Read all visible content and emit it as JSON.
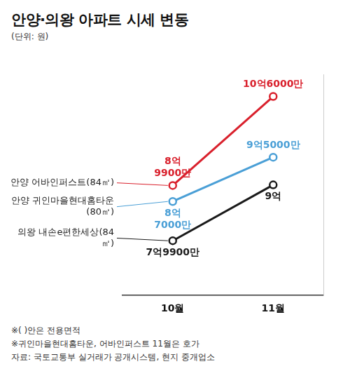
{
  "chart_data": {
    "type": "line",
    "title": "안양·의왕 아파트 시세 변동",
    "subtitle": "(단위: 원)",
    "categories": [
      "10월",
      "11월"
    ],
    "series": [
      {
        "name": "안양 귀인마을현대홈타운(80㎡)",
        "color": "#4a9fd6",
        "values": [
          870000000,
          950000000
        ],
        "value_labels": [
          "8억 7000만",
          "9억5000만"
        ]
      },
      {
        "name": "안양 어바인퍼스트(84㎡)",
        "color": "#d9202c",
        "values": [
          899000000,
          1060000000
        ],
        "value_labels": [
          "8억 9900만",
          "10억6000만"
        ]
      },
      {
        "name": "의왕 내손e편한세상(84㎡)",
        "color": "#1a1a1a",
        "values": [
          799000000,
          900000000
        ],
        "value_labels": [
          "7억9900만",
          "9억"
        ]
      }
    ],
    "ylim": [
      700000000,
      1100000000
    ],
    "yticks": [],
    "tick_labels": "x",
    "grid": false,
    "data_labels": true,
    "marker": "circle",
    "notes": [
      "※( )안은 전용면적",
      "※귀인마을현대홈타운, 어바인퍼스트 11월은 호가"
    ],
    "source": "자료: 국토교통부 실거래가 공개시스템, 현지 중개업소"
  }
}
